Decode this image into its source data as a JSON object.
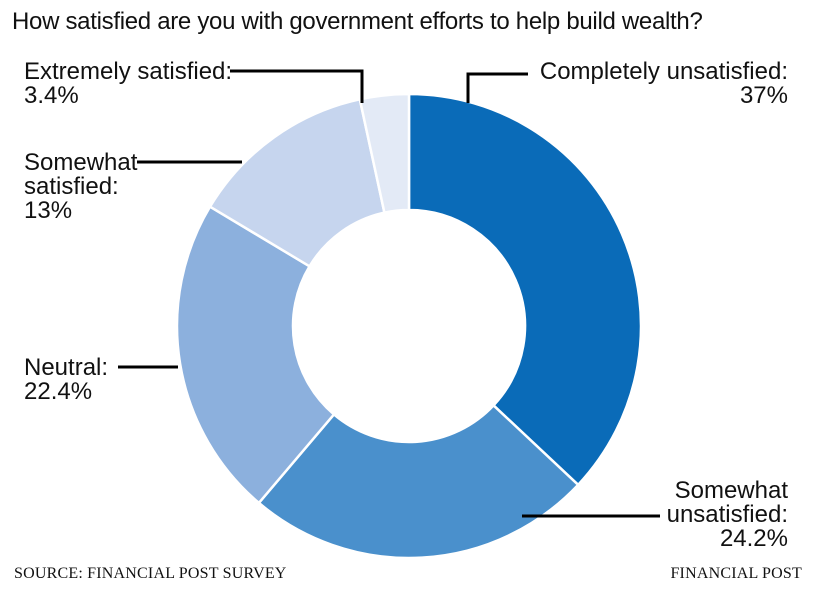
{
  "chart_data": {
    "type": "pie",
    "title": "How satisfied are you with government efforts to help build wealth?",
    "slices": [
      {
        "label": "Completely unsatisfied:",
        "value": 37,
        "value_label": "37%",
        "color": "#0a6bb8"
      },
      {
        "label": "Somewhat unsatisfied:",
        "value": 24.2,
        "value_label": "24.2%",
        "color": "#4a90cc"
      },
      {
        "label": "Neutral:",
        "value": 22.4,
        "value_label": "22.4%",
        "color": "#8cb0dd"
      },
      {
        "label": "Somewhat satisfied:",
        "value": 13,
        "value_label": "13%",
        "color": "#c6d5ee"
      },
      {
        "label": "Extremely satisfied:",
        "value": 3.4,
        "value_label": "3.4%",
        "color": "#e3eaf6"
      }
    ]
  },
  "footer": {
    "source": "SOURCE: FINANCIAL POST SURVEY",
    "brand": "FINANCIAL POST"
  }
}
